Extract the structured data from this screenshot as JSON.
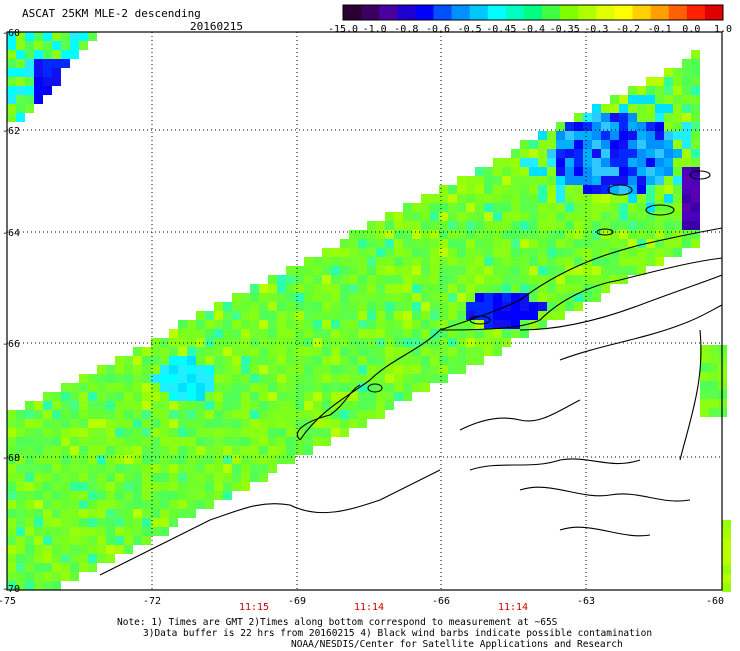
{
  "header": {
    "title": "ASCAT 25KM MLE-2 descending",
    "date": "20160215"
  },
  "colorbar": {
    "labels": [
      "-15.0",
      "-1.0",
      "-0.8",
      "-0.6",
      "-0.5",
      "-0.45",
      "-0.4",
      "-0.35",
      "-0.3",
      "-0.2",
      "-0.1",
      "0.0",
      "1.0"
    ],
    "colors": [
      "#2a0030",
      "#3a0060",
      "#4b00a0",
      "#2000d0",
      "#0000ff",
      "#0050ff",
      "#0090ff",
      "#00c8ff",
      "#00ffff",
      "#00ffc0",
      "#00ff80",
      "#40ff40",
      "#80ff00",
      "#b0ff00",
      "#e0ff00",
      "#ffff00",
      "#ffd000",
      "#ffa000",
      "#ff6000",
      "#ff2000",
      "#e00000"
    ]
  },
  "axes": {
    "lat_labels": [
      "-60",
      "-62",
      "-64",
      "-66",
      "-68",
      "-70"
    ],
    "lon_labels": [
      "-75",
      "-72",
      "-69",
      "-66",
      "-63",
      "-60"
    ],
    "times": [
      "11:15",
      "11:14",
      "11:14"
    ],
    "time_color": "#cc0000"
  },
  "notes": {
    "line1": "Note: 1) Times are GMT 2)Times along bottom correspond to measurement at ~65S",
    "line2": "3)Data buffer is 22 hrs from 20160215 4) Black wind barbs indicate possible contamination",
    "line3": "NOAA/NESDIS/Center for Satellite Applications and Research"
  }
}
